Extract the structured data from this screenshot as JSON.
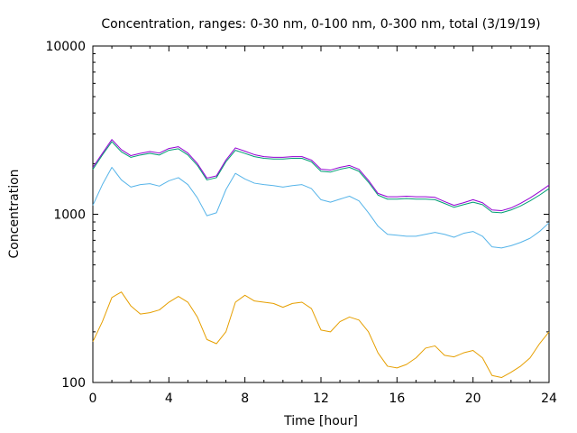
{
  "chart_data": {
    "type": "line",
    "title": "Concentration, ranges: 0-30 nm, 0-100 nm, 0-300 nm, total (3/19/19)",
    "xlabel": "Time [hour]",
    "ylabel": "Concentration",
    "xlim": [
      0,
      24
    ],
    "ylim": [
      100,
      10000
    ],
    "yscale": "log",
    "xticks": [
      0,
      4,
      8,
      12,
      16,
      20,
      24
    ],
    "yticks": [
      100,
      1000,
      10000
    ],
    "grid": false,
    "legend": "none",
    "series": [
      {
        "color": "#e69f00",
        "x": [
          0,
          0.5,
          1,
          1.5,
          2,
          2.5,
          3,
          3.5,
          4,
          4.5,
          5,
          5.5,
          6,
          6.5,
          7,
          7.5,
          8,
          8.5,
          9,
          9.5,
          10,
          10.5,
          11,
          11.5,
          12,
          12.5,
          13,
          13.5,
          14,
          14.5,
          15,
          15.5,
          16,
          16.5,
          17,
          17.5,
          18,
          18.5,
          19,
          19.5,
          20,
          20.5,
          21,
          21.5,
          22,
          22.5,
          23,
          23.5,
          24
        ],
        "values": [
          175,
          230,
          320,
          345,
          285,
          255,
          260,
          270,
          300,
          325,
          300,
          245,
          180,
          170,
          200,
          300,
          330,
          305,
          300,
          295,
          280,
          295,
          300,
          275,
          205,
          200,
          230,
          245,
          235,
          200,
          150,
          125,
          122,
          128,
          140,
          160,
          165,
          145,
          142,
          150,
          155,
          140,
          110,
          107,
          115,
          125,
          140,
          170,
          200
        ]
      },
      {
        "color": "#56b4e9",
        "x": [
          0,
          0.5,
          1,
          1.5,
          2,
          2.5,
          3,
          3.5,
          4,
          4.5,
          5,
          5.5,
          6,
          6.5,
          7,
          7.5,
          8,
          8.5,
          9,
          9.5,
          10,
          10.5,
          11,
          11.5,
          12,
          12.5,
          13,
          13.5,
          14,
          14.5,
          15,
          15.5,
          16,
          16.5,
          17,
          17.5,
          18,
          18.5,
          19,
          19.5,
          20,
          20.5,
          21,
          21.5,
          22,
          22.5,
          23,
          23.5,
          24
        ],
        "values": [
          1130,
          1500,
          1900,
          1600,
          1450,
          1500,
          1520,
          1470,
          1580,
          1650,
          1500,
          1250,
          980,
          1020,
          1400,
          1750,
          1620,
          1530,
          1500,
          1480,
          1450,
          1480,
          1500,
          1420,
          1220,
          1180,
          1230,
          1280,
          1200,
          1020,
          850,
          760,
          750,
          740,
          740,
          760,
          780,
          760,
          730,
          770,
          790,
          740,
          640,
          630,
          650,
          680,
          720,
          790,
          890
        ]
      },
      {
        "color": "#009e73",
        "x": [
          0,
          0.5,
          1,
          1.5,
          2,
          2.5,
          3,
          3.5,
          4,
          4.5,
          5,
          5.5,
          6,
          6.5,
          7,
          7.5,
          8,
          8.5,
          9,
          9.5,
          10,
          10.5,
          11,
          11.5,
          12,
          12.5,
          13,
          13.5,
          14,
          14.5,
          15,
          15.5,
          16,
          16.5,
          17,
          17.5,
          18,
          18.5,
          19,
          19.5,
          20,
          20.5,
          21,
          21.5,
          22,
          22.5,
          23,
          23.5,
          24
        ],
        "values": [
          1850,
          2250,
          2700,
          2350,
          2180,
          2250,
          2300,
          2250,
          2400,
          2450,
          2250,
          1950,
          1600,
          1650,
          2050,
          2400,
          2300,
          2200,
          2150,
          2130,
          2130,
          2150,
          2150,
          2050,
          1800,
          1780,
          1850,
          1900,
          1800,
          1550,
          1300,
          1230,
          1230,
          1240,
          1230,
          1230,
          1220,
          1160,
          1100,
          1140,
          1180,
          1140,
          1030,
          1020,
          1060,
          1120,
          1200,
          1300,
          1420
        ]
      },
      {
        "color": "#9400d3",
        "x": [
          0,
          0.5,
          1,
          1.5,
          2,
          2.5,
          3,
          3.5,
          4,
          4.5,
          5,
          5.5,
          6,
          6.5,
          7,
          7.5,
          8,
          8.5,
          9,
          9.5,
          10,
          10.5,
          11,
          11.5,
          12,
          12.5,
          13,
          13.5,
          14,
          14.5,
          15,
          15.5,
          16,
          16.5,
          17,
          17.5,
          18,
          18.5,
          19,
          19.5,
          20,
          20.5,
          21,
          21.5,
          22,
          22.5,
          23,
          23.5,
          24
        ],
        "values": [
          1900,
          2300,
          2780,
          2420,
          2230,
          2300,
          2360,
          2310,
          2460,
          2520,
          2310,
          2000,
          1640,
          1690,
          2100,
          2480,
          2370,
          2260,
          2200,
          2180,
          2180,
          2200,
          2200,
          2100,
          1850,
          1830,
          1900,
          1950,
          1850,
          1590,
          1330,
          1270,
          1270,
          1280,
          1270,
          1270,
          1260,
          1190,
          1130,
          1170,
          1220,
          1170,
          1060,
          1050,
          1090,
          1160,
          1250,
          1360,
          1490
        ]
      }
    ]
  }
}
